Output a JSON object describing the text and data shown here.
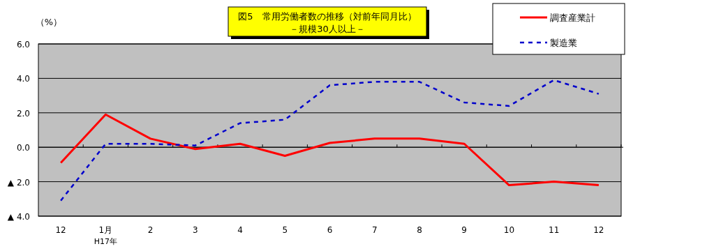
{
  "chart_data": {
    "type": "line",
    "title": "図5　常用労働者数の推移（対前年同月比）",
    "subtitle": "－規模30人以上－",
    "ylabel": "（%）",
    "categories": [
      "12",
      "1月",
      "2",
      "3",
      "4",
      "5",
      "6",
      "7",
      "8",
      "9",
      "10",
      "11",
      "12"
    ],
    "annotations": [
      "H17年"
    ],
    "series": [
      {
        "name": "調査産業計",
        "color": "#ff0000",
        "line_style": "solid",
        "values": [
          -0.9,
          1.9,
          0.5,
          -0.1,
          0.2,
          -0.5,
          0.25,
          0.5,
          0.5,
          0.2,
          -2.2,
          -2.0,
          -2.2
        ]
      },
      {
        "name": "製造業",
        "color": "#0000cc",
        "line_style": "dashed",
        "values": [
          -3.1,
          0.2,
          0.2,
          0.1,
          1.4,
          1.6,
          3.6,
          3.8,
          3.8,
          2.6,
          2.4,
          3.9,
          3.1
        ]
      }
    ],
    "ylim": [
      -4,
      6
    ],
    "yticks": [
      {
        "value": 6,
        "label": "6.0"
      },
      {
        "value": 4,
        "label": "4.0"
      },
      {
        "value": 2,
        "label": "2.0"
      },
      {
        "value": 0,
        "label": "0.0"
      },
      {
        "value": -2,
        "label": "▲ 2.0"
      },
      {
        "value": -4,
        "label": "▲ 4.0"
      }
    ],
    "grid": "y",
    "legend": "top right",
    "marker": "none"
  }
}
